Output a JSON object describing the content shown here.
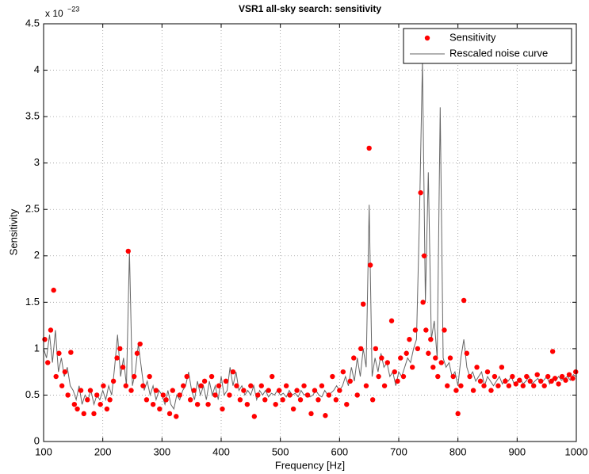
{
  "chart_data": {
    "type": "scatter",
    "title": "VSR1 all-sky search: sensitivity",
    "xlabel": "Frequency [Hz]",
    "ylabel": "Sensitivity",
    "axis_exponent": {
      "base": "x 10",
      "power": "−23"
    },
    "xlim": [
      100,
      1000
    ],
    "xticks": [
      100,
      200,
      300,
      400,
      500,
      600,
      700,
      800,
      900,
      1000
    ],
    "ylim": [
      0,
      4.5
    ],
    "yticks": [
      0,
      0.5,
      1,
      1.5,
      2,
      2.5,
      3,
      3.5,
      4,
      4.5
    ],
    "grid": true,
    "legend": "upper right",
    "series": [
      {
        "name": "Sensitivity",
        "color": "#ff0000",
        "style": "markers",
        "x": [
          102,
          107,
          112,
          117,
          121,
          126,
          131,
          136,
          141,
          146,
          152,
          157,
          163,
          168,
          174,
          179,
          185,
          190,
          196,
          201,
          207,
          212,
          218,
          224,
          229,
          234,
          239,
          243,
          248,
          253,
          258,
          263,
          268,
          274,
          279,
          285,
          290,
          296,
          302,
          307,
          313,
          318,
          324,
          330,
          336,
          342,
          348,
          354,
          360,
          366,
          372,
          378,
          384,
          390,
          396,
          402,
          408,
          414,
          420,
          426,
          432,
          438,
          444,
          450,
          456,
          462,
          468,
          474,
          480,
          486,
          492,
          498,
          504,
          510,
          516,
          522,
          528,
          534,
          540,
          546,
          552,
          558,
          564,
          570,
          576,
          582,
          588,
          594,
          600,
          606,
          612,
          618,
          624,
          630,
          636,
          640,
          645,
          650,
          652,
          656,
          661,
          666,
          671,
          676,
          681,
          688,
          693,
          698,
          703,
          708,
          713,
          718,
          723,
          728,
          732,
          737,
          741,
          743,
          746,
          750,
          754,
          758,
          762,
          766,
          772,
          777,
          782,
          787,
          792,
          797,
          800,
          805,
          810,
          815,
          820,
          826,
          832,
          838,
          844,
          850,
          856,
          862,
          868,
          874,
          880,
          886,
          892,
          898,
          904,
          910,
          916,
          922,
          928,
          934,
          940,
          946,
          952,
          958,
          960,
          964,
          970,
          976,
          982,
          988,
          994,
          999
        ],
        "values": [
          1.1,
          0.85,
          1.2,
          1.63,
          0.7,
          0.95,
          0.6,
          0.75,
          0.5,
          0.96,
          0.4,
          0.35,
          0.55,
          0.3,
          0.45,
          0.55,
          0.3,
          0.5,
          0.4,
          0.6,
          0.35,
          0.45,
          0.65,
          0.9,
          1.0,
          0.8,
          0.6,
          2.05,
          0.55,
          0.7,
          0.95,
          1.05,
          0.6,
          0.45,
          0.7,
          0.4,
          0.55,
          0.35,
          0.5,
          0.45,
          0.3,
          0.55,
          0.27,
          0.5,
          0.6,
          0.7,
          0.45,
          0.55,
          0.4,
          0.6,
          0.65,
          0.4,
          0.7,
          0.5,
          0.6,
          0.35,
          0.65,
          0.5,
          0.75,
          0.6,
          0.45,
          0.55,
          0.4,
          0.6,
          0.27,
          0.5,
          0.6,
          0.45,
          0.55,
          0.7,
          0.4,
          0.55,
          0.45,
          0.6,
          0.5,
          0.35,
          0.55,
          0.45,
          0.6,
          0.5,
          0.3,
          0.55,
          0.45,
          0.6,
          0.28,
          0.5,
          0.7,
          0.45,
          0.55,
          0.75,
          0.4,
          0.65,
          0.9,
          0.5,
          1.0,
          1.48,
          0.6,
          3.16,
          1.9,
          0.45,
          1.0,
          0.7,
          0.9,
          0.6,
          0.85,
          1.3,
          0.75,
          0.65,
          0.9,
          0.7,
          0.95,
          1.1,
          0.8,
          1.2,
          1.0,
          2.68,
          1.5,
          2.0,
          1.2,
          0.95,
          1.1,
          0.8,
          0.9,
          0.7,
          0.85,
          1.2,
          0.6,
          0.9,
          0.7,
          0.55,
          0.3,
          0.6,
          1.52,
          0.95,
          0.7,
          0.55,
          0.8,
          0.65,
          0.6,
          0.75,
          0.55,
          0.7,
          0.6,
          0.8,
          0.65,
          0.6,
          0.7,
          0.62,
          0.66,
          0.6,
          0.7,
          0.65,
          0.6,
          0.72,
          0.65,
          0.6,
          0.7,
          0.65,
          0.97,
          0.68,
          0.62,
          0.7,
          0.66,
          0.72,
          0.68,
          0.75
        ]
      },
      {
        "name": "Rescaled noise curve",
        "color": "#666666",
        "style": "line",
        "x": [
          100,
          105,
          110,
          115,
          120,
          125,
          130,
          135,
          140,
          145,
          150,
          155,
          160,
          165,
          170,
          175,
          180,
          185,
          190,
          195,
          200,
          205,
          210,
          215,
          220,
          225,
          230,
          235,
          240,
          245,
          250,
          255,
          260,
          265,
          270,
          275,
          280,
          285,
          290,
          295,
          300,
          305,
          310,
          315,
          320,
          325,
          330,
          335,
          340,
          345,
          350,
          355,
          360,
          365,
          370,
          375,
          380,
          385,
          390,
          395,
          400,
          405,
          410,
          415,
          420,
          425,
          430,
          435,
          440,
          445,
          450,
          455,
          460,
          465,
          470,
          475,
          480,
          485,
          490,
          495,
          500,
          505,
          510,
          515,
          520,
          525,
          530,
          535,
          540,
          545,
          550,
          555,
          560,
          565,
          570,
          575,
          580,
          585,
          590,
          595,
          600,
          605,
          610,
          615,
          620,
          625,
          630,
          635,
          640,
          645,
          650,
          655,
          660,
          665,
          670,
          675,
          680,
          685,
          690,
          695,
          700,
          705,
          710,
          715,
          720,
          725,
          730,
          735,
          740,
          745,
          750,
          755,
          760,
          765,
          770,
          775,
          780,
          785,
          790,
          795,
          800,
          805,
          810,
          815,
          820,
          825,
          830,
          835,
          840,
          845,
          850,
          855,
          860,
          865,
          870,
          875,
          880,
          885,
          890,
          895,
          900,
          905,
          910,
          915,
          920,
          925,
          930,
          935,
          940,
          945,
          950,
          955,
          960,
          965,
          970,
          975,
          980,
          985,
          990,
          995,
          1000
        ],
        "values": [
          1.0,
          0.9,
          1.15,
          0.85,
          1.2,
          0.75,
          0.9,
          0.7,
          0.8,
          0.6,
          0.55,
          0.45,
          0.6,
          0.4,
          0.5,
          0.45,
          0.55,
          0.4,
          0.5,
          0.45,
          0.55,
          0.45,
          0.6,
          0.5,
          0.8,
          1.15,
          0.7,
          0.9,
          0.6,
          2.05,
          0.6,
          0.75,
          1.05,
          0.8,
          0.55,
          0.65,
          0.5,
          0.6,
          0.45,
          0.55,
          0.5,
          0.4,
          0.55,
          0.4,
          0.35,
          0.5,
          0.45,
          0.55,
          0.6,
          0.75,
          0.55,
          0.45,
          0.65,
          0.5,
          0.6,
          0.45,
          0.65,
          0.5,
          0.6,
          0.45,
          0.7,
          0.5,
          0.55,
          0.8,
          0.6,
          0.75,
          0.55,
          0.6,
          0.5,
          0.55,
          0.5,
          0.6,
          0.45,
          0.55,
          0.5,
          0.55,
          0.48,
          0.52,
          0.5,
          0.55,
          0.5,
          0.52,
          0.48,
          0.55,
          0.5,
          0.52,
          0.48,
          0.55,
          0.5,
          0.52,
          0.48,
          0.5,
          0.55,
          0.5,
          0.48,
          0.55,
          0.5,
          0.52,
          0.55,
          0.6,
          0.55,
          0.6,
          0.7,
          0.6,
          0.8,
          0.65,
          0.9,
          0.7,
          1.0,
          0.8,
          2.55,
          0.7,
          0.9,
          0.75,
          0.95,
          0.8,
          0.85,
          0.7,
          0.75,
          0.6,
          0.75,
          0.7,
          0.8,
          0.9,
          0.85,
          1.0,
          1.1,
          2.4,
          4.1,
          1.5,
          2.9,
          1.1,
          1.3,
          0.9,
          3.6,
          0.9,
          0.8,
          0.85,
          0.7,
          0.75,
          0.6,
          0.9,
          1.1,
          0.8,
          0.7,
          0.75,
          0.65,
          0.7,
          0.75,
          0.6,
          0.7,
          0.65,
          0.6,
          0.65,
          0.7,
          0.62,
          0.68,
          0.65,
          0.7,
          0.62,
          0.65,
          0.68,
          0.62,
          0.65,
          0.7,
          0.62,
          0.65,
          0.68,
          0.63,
          0.66,
          0.7,
          0.62,
          0.68,
          0.65,
          0.7,
          0.66,
          0.68,
          0.7,
          0.66,
          0.72,
          0.7
        ]
      }
    ]
  }
}
